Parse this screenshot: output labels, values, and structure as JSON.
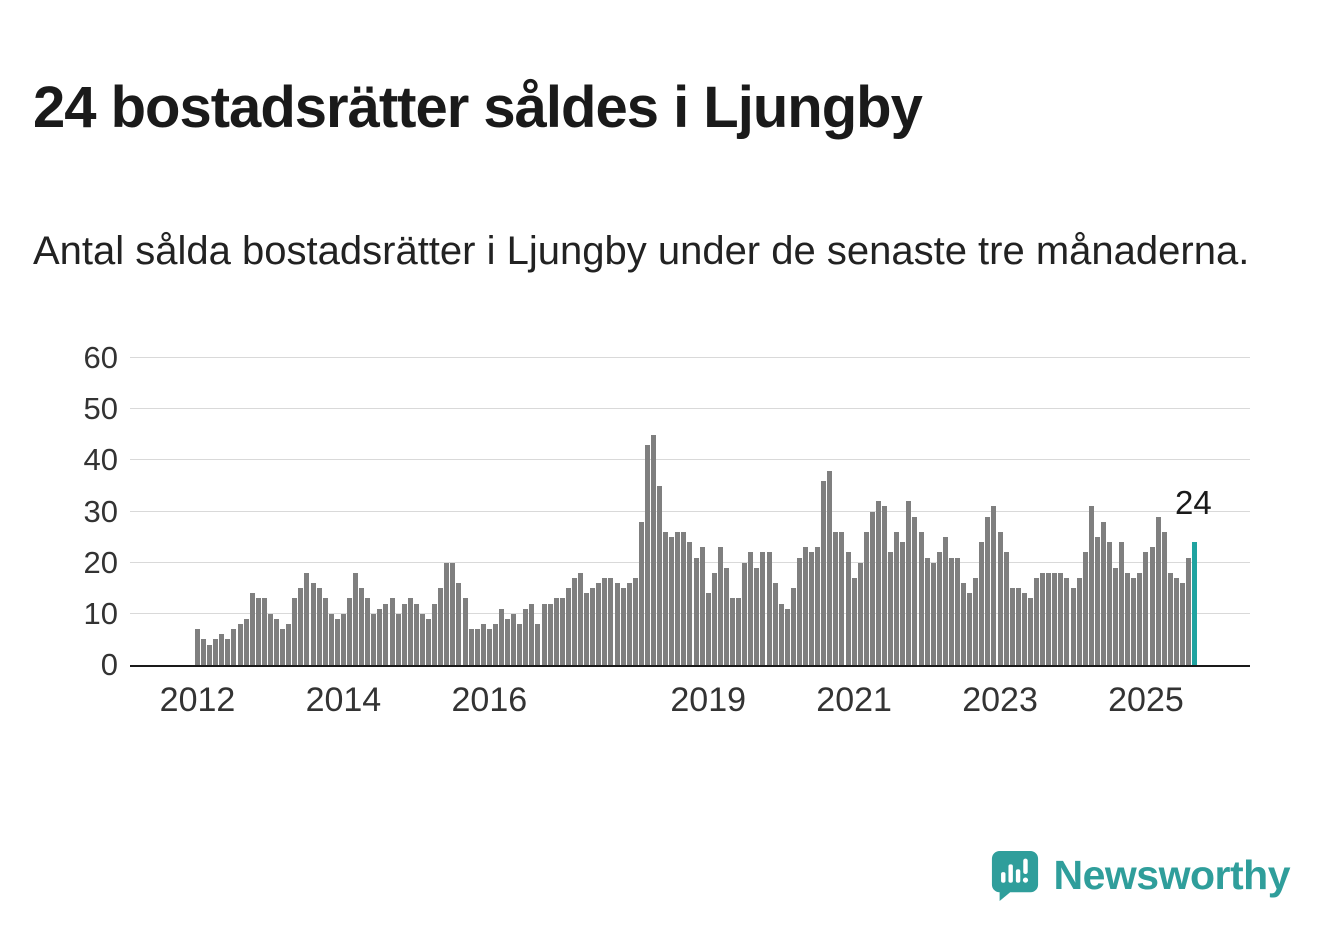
{
  "header": {
    "title": "24 bostadsrätter såldes i Ljungby",
    "subtitle": "Antal sålda bostadsrätter i Ljungby under de senaste tre månaderna."
  },
  "chart_data": {
    "type": "bar",
    "title": "",
    "xlabel": "",
    "ylabel": "",
    "ylim": [
      0,
      60
    ],
    "grid": true,
    "legend": "none",
    "bar_color": "#7f7f7f",
    "highlight_color": "#1fa3a0",
    "highlight_last": true,
    "y_ticks": [
      0,
      10,
      20,
      30,
      40,
      50,
      60
    ],
    "x_ticks": [
      {
        "label": "2012",
        "index": 0
      },
      {
        "label": "2014",
        "index": 24
      },
      {
        "label": "2016",
        "index": 48
      },
      {
        "label": "2019",
        "index": 84
      },
      {
        "label": "2021",
        "index": 108
      },
      {
        "label": "2023",
        "index": 132
      },
      {
        "label": "2025",
        "index": 156
      }
    ],
    "x_start": "2012-01",
    "values": [
      7,
      5,
      4,
      5,
      6,
      5,
      7,
      8,
      9,
      14,
      13,
      13,
      10,
      9,
      7,
      8,
      13,
      15,
      18,
      16,
      15,
      13,
      10,
      9,
      10,
      13,
      18,
      15,
      13,
      10,
      11,
      12,
      13,
      10,
      12,
      13,
      12,
      10,
      9,
      12,
      15,
      20,
      20,
      16,
      13,
      7,
      7,
      8,
      7,
      8,
      11,
      9,
      10,
      8,
      11,
      12,
      8,
      12,
      12,
      13,
      13,
      15,
      17,
      18,
      14,
      15,
      16,
      17,
      17,
      16,
      15,
      16,
      17,
      28,
      43,
      45,
      35,
      26,
      25,
      26,
      26,
      24,
      21,
      23,
      14,
      18,
      23,
      19,
      13,
      13,
      20,
      22,
      19,
      22,
      22,
      16,
      12,
      11,
      15,
      21,
      23,
      22,
      23,
      36,
      38,
      26,
      26,
      22,
      17,
      20,
      26,
      30,
      32,
      31,
      22,
      26,
      24,
      32,
      29,
      26,
      21,
      20,
      22,
      25,
      21,
      21,
      16,
      14,
      17,
      24,
      29,
      31,
      26,
      22,
      15,
      15,
      14,
      13,
      17,
      18,
      18,
      18,
      18,
      17,
      15,
      17,
      22,
      31,
      25,
      28,
      24,
      19,
      24,
      18,
      17,
      18,
      22,
      23,
      29,
      26,
      18,
      17,
      16,
      21,
      24
    ],
    "annotation": {
      "text": "24",
      "value": 24
    }
  },
  "footer": {
    "brand": "Newsworthy",
    "brand_color": "#2f9e9b"
  }
}
